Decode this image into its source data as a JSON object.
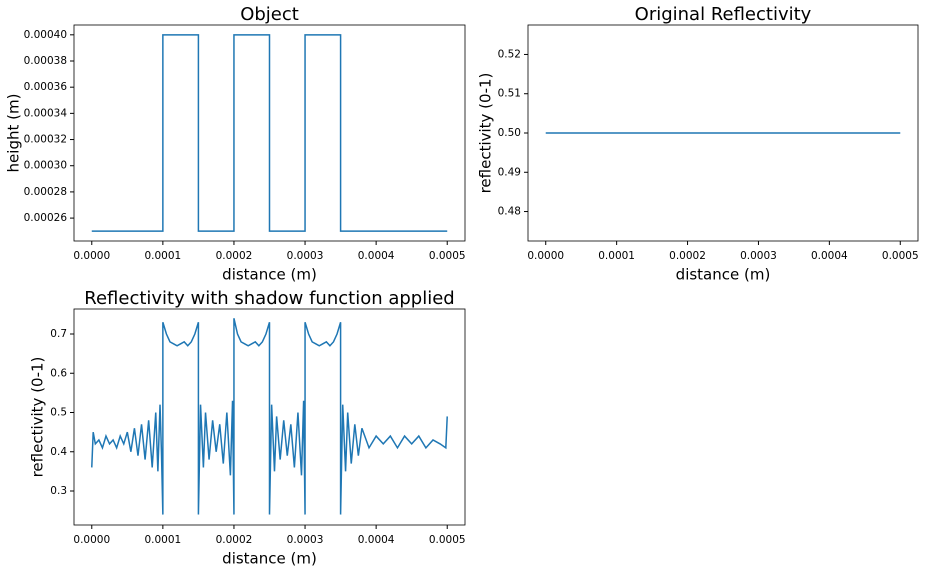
{
  "chart_data": [
    {
      "type": "line",
      "title": "Object",
      "x_label": "distance (m)",
      "y_label": "height (m)",
      "color": "#1f77b4",
      "x": [
        0,
        0.0001,
        0.0001,
        0.00015,
        0.00015,
        0.0002,
        0.0002,
        0.00025,
        0.00025,
        0.0003,
        0.0003,
        0.00035,
        0.00035,
        0.0005
      ],
      "values": [
        0.00025,
        0.00025,
        0.0004,
        0.0004,
        0.00025,
        0.00025,
        0.0004,
        0.0004,
        0.00025,
        0.00025,
        0.0004,
        0.0004,
        0.00025,
        0.00025
      ],
      "xlim": [
        -2.5e-05,
        0.000525
      ],
      "ylim": [
        0.0002425,
        0.0004075
      ],
      "xticks": [
        {
          "value": 0,
          "label": "0.0000"
        },
        {
          "value": 0.0001,
          "label": "0.0001"
        },
        {
          "value": 0.0002,
          "label": "0.0002"
        },
        {
          "value": 0.0003,
          "label": "0.0003"
        },
        {
          "value": 0.0004,
          "label": "0.0004"
        },
        {
          "value": 0.0005,
          "label": "0.0005"
        }
      ],
      "yticks": [
        0.00026,
        0.00028,
        {
          "value": 0.0003,
          "label": "0.00030"
        },
        0.00032,
        0.00034,
        0.00036,
        0.00038,
        {
          "value": 0.0004,
          "label": "0.00040"
        }
      ]
    },
    {
      "type": "line",
      "title": "Original Reflectivity",
      "x_label": "distance (m)",
      "y_label": "reflectivity (0-1)",
      "color": "#1f77b4",
      "x": [
        0,
        0.0005
      ],
      "values": [
        0.5,
        0.5
      ],
      "xlim": [
        -2.5e-05,
        0.000525
      ],
      "ylim": [
        0.4725,
        0.5275
      ],
      "xticks": [
        {
          "value": 0,
          "label": "0.0000"
        },
        {
          "value": 0.0001,
          "label": "0.0001"
        },
        {
          "value": 0.0002,
          "label": "0.0002"
        },
        {
          "value": 0.0003,
          "label": "0.0003"
        },
        {
          "value": 0.0004,
          "label": "0.0004"
        },
        {
          "value": 0.0005,
          "label": "0.0005"
        }
      ],
      "yticks": [
        0.48,
        0.49,
        {
          "value": 0.5,
          "label": "0.50"
        },
        0.51,
        0.52
      ]
    },
    {
      "type": "line",
      "title": "Reflectivity with shadow function applied",
      "x_label": "distance (m)",
      "y_label": "reflectivity (0-1)",
      "color": "#1f77b4",
      "x": [
        0,
        2e-06,
        5e-06,
        1e-05,
        1.5e-05,
        2e-05,
        2.5e-05,
        3e-05,
        3.5e-05,
        4e-05,
        4.5e-05,
        5e-05,
        5.5e-05,
        6e-05,
        6.5e-05,
        7e-05,
        7.5e-05,
        8e-05,
        8.5e-05,
        9e-05,
        9.3e-05,
        9.6e-05,
        9.8e-05,
        0.0001,
        0.0001,
        0.000105,
        0.00011,
        0.000115,
        0.00012,
        0.000125,
        0.00013,
        0.000135,
        0.00014,
        0.000145,
        0.00015,
        0.00015,
        0.000153,
        0.000157,
        0.00016,
        0.000165,
        0.00017,
        0.000175,
        0.00018,
        0.000185,
        0.00019,
        0.000195,
        0.000198,
        0.0002,
        0.0002,
        0.000205,
        0.00021,
        0.000215,
        0.00022,
        0.000225,
        0.00023,
        0.000235,
        0.00024,
        0.000245,
        0.00025,
        0.00025,
        0.000253,
        0.000257,
        0.00026,
        0.000265,
        0.00027,
        0.000275,
        0.00028,
        0.000285,
        0.00029,
        0.000295,
        0.000298,
        0.0003,
        0.0003,
        0.000305,
        0.00031,
        0.000315,
        0.00032,
        0.000325,
        0.00033,
        0.000335,
        0.00034,
        0.000345,
        0.00035,
        0.00035,
        0.000353,
        0.000357,
        0.00036,
        0.000365,
        0.00037,
        0.000375,
        0.00038,
        0.00039,
        0.0004,
        0.00041,
        0.00042,
        0.00043,
        0.00044,
        0.00045,
        0.00046,
        0.00047,
        0.00048,
        0.00049,
        0.000498,
        0.0005
      ],
      "values": [
        0.36,
        0.45,
        0.42,
        0.43,
        0.41,
        0.44,
        0.42,
        0.43,
        0.41,
        0.44,
        0.42,
        0.45,
        0.4,
        0.46,
        0.39,
        0.47,
        0.38,
        0.48,
        0.36,
        0.5,
        0.35,
        0.52,
        0.4,
        0.24,
        0.73,
        0.7,
        0.68,
        0.675,
        0.67,
        0.675,
        0.68,
        0.67,
        0.68,
        0.7,
        0.73,
        0.24,
        0.52,
        0.36,
        0.5,
        0.38,
        0.48,
        0.4,
        0.47,
        0.37,
        0.5,
        0.34,
        0.53,
        0.24,
        0.74,
        0.7,
        0.68,
        0.675,
        0.67,
        0.675,
        0.68,
        0.67,
        0.68,
        0.7,
        0.73,
        0.24,
        0.52,
        0.35,
        0.49,
        0.38,
        0.48,
        0.39,
        0.47,
        0.36,
        0.5,
        0.34,
        0.53,
        0.24,
        0.73,
        0.7,
        0.68,
        0.675,
        0.67,
        0.675,
        0.68,
        0.67,
        0.68,
        0.7,
        0.73,
        0.24,
        0.52,
        0.35,
        0.5,
        0.37,
        0.47,
        0.39,
        0.46,
        0.41,
        0.44,
        0.42,
        0.44,
        0.41,
        0.44,
        0.42,
        0.44,
        0.41,
        0.43,
        0.42,
        0.41,
        0.49
      ],
      "xlim": [
        -2.5e-05,
        0.000525
      ],
      "ylim": [
        0.2134,
        0.7637
      ],
      "xticks": [
        {
          "value": 0,
          "label": "0.0000"
        },
        {
          "value": 0.0001,
          "label": "0.0001"
        },
        {
          "value": 0.0002,
          "label": "0.0002"
        },
        {
          "value": 0.0003,
          "label": "0.0003"
        },
        {
          "value": 0.0004,
          "label": "0.0004"
        },
        {
          "value": 0.0005,
          "label": "0.0005"
        }
      ],
      "yticks": [
        0.3,
        0.4,
        0.5,
        0.6,
        0.7
      ]
    }
  ]
}
